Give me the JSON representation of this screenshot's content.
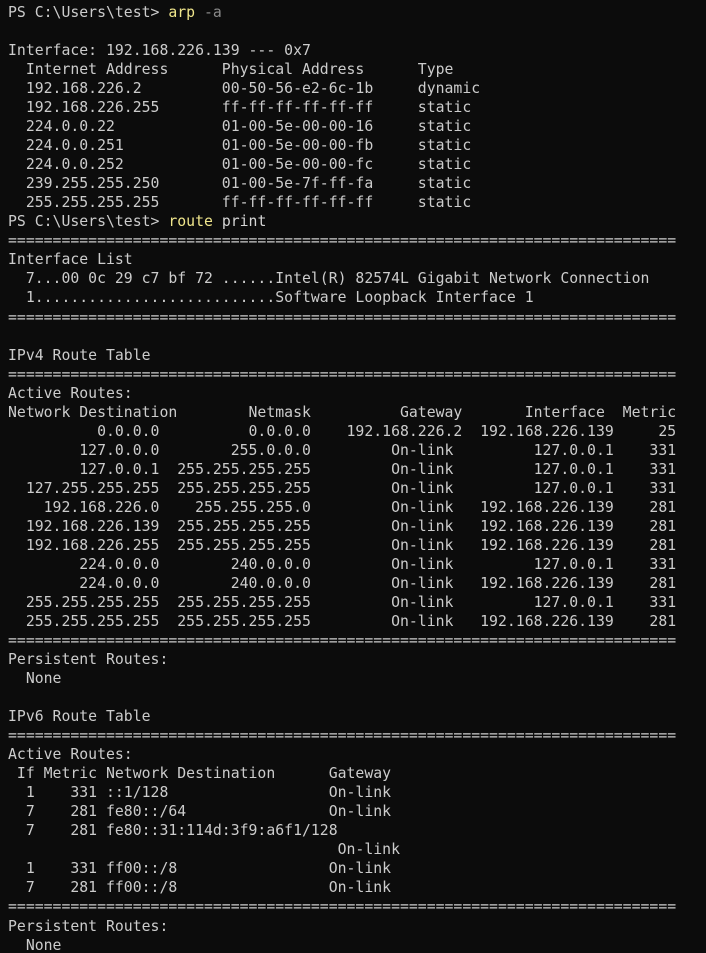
{
  "terminal": {
    "colors": {
      "background": "#0c0c0c",
      "foreground": "#cccccc",
      "command": "#f0e68c",
      "parameter": "#8a8a8a",
      "argument": "#d6d6d6"
    },
    "prompt": "PS C:\\Users\\test>",
    "commands": [
      {
        "command": "arp",
        "argument": "-a"
      },
      {
        "command": "route",
        "argument": "print"
      }
    ],
    "lines": [
      {
        "segments": [
          {
            "text": "PS C:\\Users\\test> ",
            "color": "fg"
          },
          {
            "text": "arp",
            "color": "cmd"
          },
          {
            "text": " ",
            "color": "fg"
          },
          {
            "text": "-a",
            "color": "param"
          }
        ]
      },
      {
        "text": ""
      },
      {
        "text": "Interface: 192.168.226.139 --- 0x7"
      },
      {
        "text": "  Internet Address      Physical Address      Type"
      },
      {
        "text": "  192.168.226.2         00-50-56-e2-6c-1b     dynamic"
      },
      {
        "text": "  192.168.226.255       ff-ff-ff-ff-ff-ff     static"
      },
      {
        "text": "  224.0.0.22            01-00-5e-00-00-16     static"
      },
      {
        "text": "  224.0.0.251           01-00-5e-00-00-fb     static"
      },
      {
        "text": "  224.0.0.252           01-00-5e-00-00-fc     static"
      },
      {
        "text": "  239.255.255.250       01-00-5e-7f-ff-fa     static"
      },
      {
        "text": "  255.255.255.255       ff-ff-ff-ff-ff-ff     static"
      },
      {
        "segments": [
          {
            "text": "PS C:\\Users\\test> ",
            "color": "fg"
          },
          {
            "text": "route",
            "color": "cmd"
          },
          {
            "text": " ",
            "color": "fg"
          },
          {
            "text": "print",
            "color": "arg"
          }
        ]
      },
      {
        "text": "==========================================================================="
      },
      {
        "text": "Interface List"
      },
      {
        "text": "  7...00 0c 29 c7 bf 72 ......Intel(R) 82574L Gigabit Network Connection"
      },
      {
        "text": "  1...........................Software Loopback Interface 1"
      },
      {
        "text": "==========================================================================="
      },
      {
        "text": ""
      },
      {
        "text": "IPv4 Route Table"
      },
      {
        "text": "==========================================================================="
      },
      {
        "text": "Active Routes:"
      },
      {
        "text": "Network Destination        Netmask          Gateway       Interface  Metric"
      },
      {
        "text": "          0.0.0.0          0.0.0.0    192.168.226.2  192.168.226.139     25"
      },
      {
        "text": "        127.0.0.0        255.0.0.0         On-link         127.0.0.1    331"
      },
      {
        "text": "        127.0.0.1  255.255.255.255         On-link         127.0.0.1    331"
      },
      {
        "text": "  127.255.255.255  255.255.255.255         On-link         127.0.0.1    331"
      },
      {
        "text": "    192.168.226.0    255.255.255.0         On-link   192.168.226.139    281"
      },
      {
        "text": "  192.168.226.139  255.255.255.255         On-link   192.168.226.139    281"
      },
      {
        "text": "  192.168.226.255  255.255.255.255         On-link   192.168.226.139    281"
      },
      {
        "text": "        224.0.0.0        240.0.0.0         On-link         127.0.0.1    331"
      },
      {
        "text": "        224.0.0.0        240.0.0.0         On-link   192.168.226.139    281"
      },
      {
        "text": "  255.255.255.255  255.255.255.255         On-link         127.0.0.1    331"
      },
      {
        "text": "  255.255.255.255  255.255.255.255         On-link   192.168.226.139    281"
      },
      {
        "text": "==========================================================================="
      },
      {
        "text": "Persistent Routes:"
      },
      {
        "text": "  None"
      },
      {
        "text": ""
      },
      {
        "text": "IPv6 Route Table"
      },
      {
        "text": "==========================================================================="
      },
      {
        "text": "Active Routes:"
      },
      {
        "text": " If Metric Network Destination      Gateway"
      },
      {
        "text": "  1    331 ::1/128                  On-link"
      },
      {
        "text": "  7    281 fe80::/64                On-link"
      },
      {
        "text": "  7    281 fe80::31:114d:3f9:a6f1/128"
      },
      {
        "text": "                                     On-link"
      },
      {
        "text": "  1    331 ff00::/8                 On-link"
      },
      {
        "text": "  7    281 ff00::/8                 On-link"
      },
      {
        "text": "==========================================================================="
      },
      {
        "text": "Persistent Routes:"
      },
      {
        "text": "  None"
      }
    ]
  }
}
